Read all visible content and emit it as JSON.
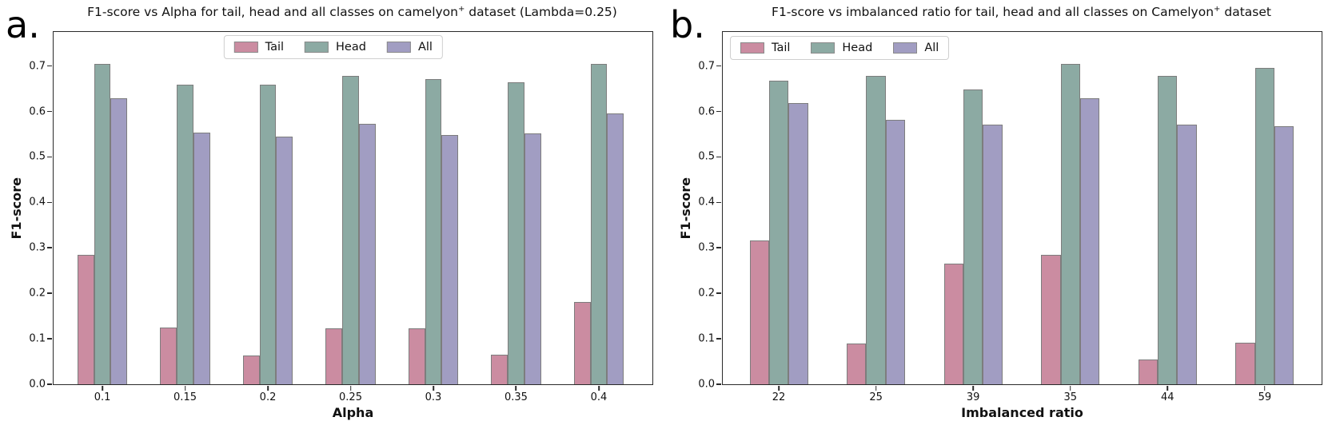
{
  "page": {
    "background": "#ffffff"
  },
  "chart_data": [
    {
      "type": "bar",
      "panel_label": "a.",
      "title": "F1-score vs Alpha for tail, head and all classes on camelyon+ dataset (Lambda=0.25)",
      "title_parts": {
        "pre": "F1-score vs Alpha for tail, head and all classes on camelyon",
        "sup": "+",
        "post": " dataset (Lambda=0.25)"
      },
      "xlabel": "Alpha",
      "ylabel": "F1-score",
      "categories": [
        "0.1",
        "0.15",
        "0.2",
        "0.25",
        "0.3",
        "0.35",
        "0.4"
      ],
      "series": [
        {
          "name": "Tail",
          "color": "#cb8ca1",
          "values": [
            0.285,
            0.124,
            0.064,
            0.123,
            0.123,
            0.065,
            0.181
          ]
        },
        {
          "name": "Head",
          "color": "#8caaa3",
          "values": [
            0.705,
            0.659,
            0.659,
            0.679,
            0.672,
            0.665,
            0.705
          ]
        },
        {
          "name": "All",
          "color": "#a19dc2",
          "values": [
            0.63,
            0.553,
            0.545,
            0.573,
            0.549,
            0.551,
            0.596
          ]
        }
      ],
      "ylim": [
        0,
        0.775
      ],
      "yticks": [
        "0.0",
        "0.1",
        "0.2",
        "0.3",
        "0.4",
        "0.5",
        "0.6",
        "0.7"
      ],
      "grid": false,
      "legend": {
        "labels": [
          "Tail",
          "Head",
          "All"
        ],
        "loc": "upper center"
      },
      "bar_edge_color": "#7d7d7d"
    },
    {
      "type": "bar",
      "panel_label": "b.",
      "title": "F1-score vs imbalanced ratio for tail, head and all classes on Camelyon+ dataset",
      "title_parts": {
        "pre": "F1-score vs imbalanced ratio for tail, head and all classes on Camelyon",
        "sup": "+",
        "post": " dataset"
      },
      "xlabel": "Imbalanced ratio",
      "ylabel": "F1-score",
      "categories": [
        "22",
        "25",
        "39",
        "35",
        "44",
        "59"
      ],
      "series": [
        {
          "name": "Tail",
          "color": "#cb8ca1",
          "values": [
            0.316,
            0.089,
            0.266,
            0.284,
            0.054,
            0.092
          ]
        },
        {
          "name": "Head",
          "color": "#8caaa3",
          "values": [
            0.667,
            0.678,
            0.649,
            0.705,
            0.679,
            0.696
          ]
        },
        {
          "name": "All",
          "color": "#a19dc2",
          "values": [
            0.618,
            0.582,
            0.572,
            0.63,
            0.572,
            0.567
          ]
        }
      ],
      "ylim": [
        0,
        0.775
      ],
      "yticks": [
        "0.0",
        "0.1",
        "0.2",
        "0.3",
        "0.4",
        "0.5",
        "0.6",
        "0.7"
      ],
      "grid": false,
      "legend": {
        "labels": [
          "Tail",
          "Head",
          "All"
        ],
        "loc": "upper left"
      },
      "bar_edge_color": "#7d7d7d"
    }
  ]
}
